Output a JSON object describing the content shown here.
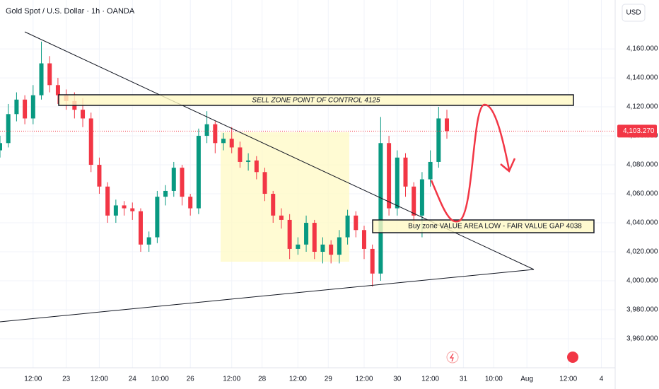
{
  "chart_data": {
    "type": "candlestick",
    "title": "Gold Spot / U.S. Dollar · 1h · OANDA",
    "currency": "USD",
    "annotations": [
      "SELL ZONE POINT OF CONTROL 4125",
      "Buy zone VALUE AREA LOW - FAIR VALUE GAP 4038"
    ],
    "up_color": "#089981",
    "down_color": "#f23645",
    "x": [
      0,
      3,
      6,
      9,
      12,
      15,
      18,
      21,
      24,
      27,
      30,
      33,
      36,
      39,
      42,
      45,
      48,
      51,
      54,
      57,
      60,
      63,
      66,
      69,
      72,
      75,
      78,
      81,
      84,
      87,
      90,
      93,
      96,
      99,
      102,
      105,
      108,
      111,
      114,
      117,
      120,
      123,
      126,
      129,
      132,
      135,
      138,
      141,
      144,
      147,
      150,
      153,
      156,
      159,
      162
    ],
    "open": [
      4090,
      4095,
      4115,
      4125,
      4112,
      4128,
      4150,
      4135,
      4128,
      4124,
      4118,
      4112,
      4080,
      4065,
      4045,
      4052,
      4050,
      4048,
      4025,
      4030,
      4058,
      4062,
      4078,
      4058,
      4050,
      4100,
      4108,
      4095,
      4098,
      4092,
      4082,
      4083,
      4075,
      4060,
      4045,
      4042,
      4022,
      4025,
      4040,
      4020,
      4025,
      4018,
      4030,
      4045,
      4035,
      4022,
      4005,
      4095,
      4050,
      4085,
      4065,
      4045,
      4070,
      4082,
      4112
    ],
    "high": [
      4100,
      4122,
      4130,
      4128,
      4135,
      4165,
      4155,
      4140,
      4132,
      4130,
      4126,
      4116,
      4085,
      4068,
      4056,
      4055,
      4054,
      4050,
      4034,
      4062,
      4066,
      4082,
      4080,
      4060,
      4105,
      4117,
      4110,
      4102,
      4106,
      4096,
      4088,
      4086,
      4078,
      4062,
      4050,
      4046,
      4030,
      4045,
      4042,
      4030,
      4028,
      4035,
      4049,
      4048,
      4038,
      4025,
      4113,
      4100,
      4090,
      4088,
      4068,
      4075,
      4090,
      4120,
      4118
    ],
    "low": [
      4085,
      4092,
      4110,
      4108,
      4108,
      4125,
      4130,
      4122,
      4118,
      4112,
      4106,
      4075,
      4060,
      4040,
      4040,
      4045,
      4042,
      4020,
      4020,
      4026,
      4052,
      4058,
      4052,
      4045,
      4046,
      4095,
      4088,
      4090,
      4088,
      4078,
      4076,
      4070,
      4055,
      4040,
      4036,
      4015,
      4018,
      4020,
      4015,
      4012,
      4012,
      4012,
      4025,
      4030,
      4015,
      3996,
      4000,
      4045,
      4045,
      4058,
      4038,
      4030,
      4065,
      4078,
      4098
    ],
    "close": [
      4095,
      4115,
      4125,
      4112,
      4128,
      4150,
      4135,
      4128,
      4124,
      4118,
      4112,
      4080,
      4065,
      4045,
      4052,
      4050,
      4048,
      4025,
      4030,
      4058,
      4062,
      4078,
      4058,
      4050,
      4100,
      4108,
      4095,
      4098,
      4092,
      4082,
      4083,
      4075,
      4060,
      4045,
      4042,
      4022,
      4025,
      4040,
      4020,
      4025,
      4018,
      4030,
      4045,
      4035,
      4022,
      4005,
      4095,
      4050,
      4085,
      4065,
      4045,
      4070,
      4082,
      4112,
      4103.27
    ],
    "last_price": {
      "value": 4103.27,
      "label": "4,103.270"
    },
    "xlim": [
      0,
      223
    ],
    "xticks": [
      {
        "value": 12,
        "label": "12:00"
      },
      {
        "value": 24,
        "label": "23"
      },
      {
        "value": 36,
        "label": "12:00"
      },
      {
        "value": 48,
        "label": "24"
      },
      {
        "value": 58,
        "label": "10:00"
      },
      {
        "value": 69,
        "label": "26"
      },
      {
        "value": 84,
        "label": "12:00"
      },
      {
        "value": 95,
        "label": "28"
      },
      {
        "value": 108,
        "label": "12:00"
      },
      {
        "value": 119,
        "label": "29"
      },
      {
        "value": 132,
        "label": "12:00"
      },
      {
        "value": 144,
        "label": "30"
      },
      {
        "value": 156,
        "label": "12:00"
      },
      {
        "value": 168,
        "label": "31"
      },
      {
        "value": 179,
        "label": "10:00"
      },
      {
        "value": 191,
        "label": "Aug"
      },
      {
        "value": 206,
        "label": "12:00"
      },
      {
        "value": 218,
        "label": "4"
      }
    ],
    "ylim": [
      3940,
      4193.7
    ],
    "yticks": [
      {
        "value": 3960,
        "label": "3,960.000"
      },
      {
        "value": 3980,
        "label": "3,980.000"
      },
      {
        "value": 4000,
        "label": "4,000.000"
      },
      {
        "value": 4020,
        "label": "4,020.000"
      },
      {
        "value": 4040,
        "label": "4,040.000"
      },
      {
        "value": 4060,
        "label": "4,060.000"
      },
      {
        "value": 4080,
        "label": "4,080.000"
      },
      {
        "value": 4100,
        "label": "4,100.000"
      },
      {
        "value": 4120,
        "label": "4,120.000"
      },
      {
        "value": 4140,
        "label": "4,140.000"
      },
      {
        "value": 4160,
        "label": "4,160.000"
      }
    ],
    "grid": true
  }
}
